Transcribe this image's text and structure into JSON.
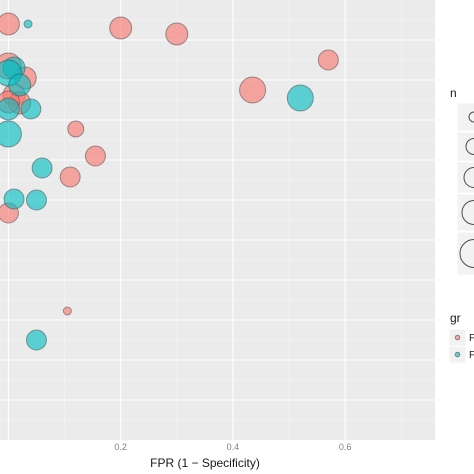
{
  "chart_data": {
    "type": "scatter",
    "title": "",
    "xlabel": "FPR (1 − Specificity)",
    "ylabel": "",
    "x_ticks": [
      "0.2",
      "0.4",
      "0.6"
    ],
    "x_tick_values": [
      0.2,
      0.4,
      0.6
    ],
    "xlim": [
      -0.015,
      0.76
    ],
    "grid": true,
    "size_legend_title": "n",
    "color_legend_title": "gr",
    "color_legend_labels": [
      "F",
      "F"
    ],
    "series": [
      {
        "color": "#F8766D",
        "points": [
          {
            "x": 0.0,
            "n": 3
          },
          {
            "x": 0.2,
            "n": 3
          },
          {
            "x": 0.3,
            "n": 3
          },
          {
            "x": 0.0,
            "n": 4
          },
          {
            "x": 0.03,
            "n": 3
          },
          {
            "x": 0.57,
            "n": 2
          },
          {
            "x": 0.01,
            "n": 3
          },
          {
            "x": 0.435,
            "n": 4
          },
          {
            "x": 0.02,
            "n": 3
          },
          {
            "x": 0.0,
            "n": 3
          },
          {
            "x": 0.12,
            "n": 1
          },
          {
            "x": 0.155,
            "n": 2
          },
          {
            "x": 0.11,
            "n": 2
          },
          {
            "x": 0.0,
            "n": 2
          },
          {
            "x": 0.105,
            "n": 0
          }
        ]
      },
      {
        "color": "#00BFC4",
        "points": [
          {
            "x": 0.035,
            "n": 0
          },
          {
            "x": 0.01,
            "n": 3
          },
          {
            "x": 0.0,
            "n": 4
          },
          {
            "x": 0.02,
            "n": 3
          },
          {
            "x": 0.52,
            "n": 4
          },
          {
            "x": 0.04,
            "n": 2
          },
          {
            "x": 0.0,
            "n": 3
          },
          {
            "x": 0.0,
            "n": 4
          },
          {
            "x": 0.06,
            "n": 2
          },
          {
            "x": 0.01,
            "n": 2
          },
          {
            "x": 0.05,
            "n": 2
          },
          {
            "x": 0.05,
            "n": 2
          }
        ]
      }
    ]
  }
}
